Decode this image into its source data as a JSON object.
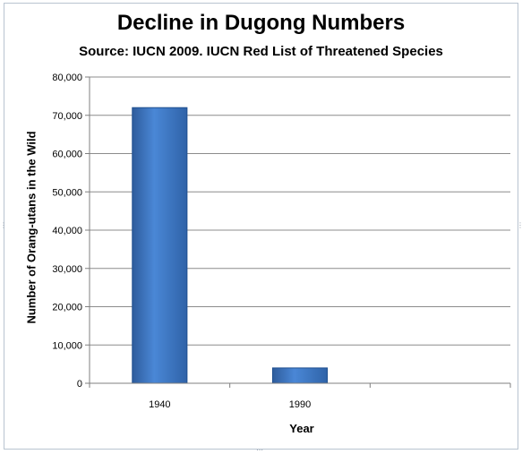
{
  "chart_data": {
    "type": "bar",
    "title": "Decline in Dugong Numbers",
    "subtitle": "Source:  IUCN 2009. IUCN Red List of Threatened Species",
    "xlabel": "Year",
    "ylabel": "Number of Orang-utans in the Wild",
    "categories": [
      "1940",
      "1990",
      ""
    ],
    "values": [
      72000,
      4000,
      null
    ],
    "ylim": [
      0,
      80000
    ],
    "yticks": [
      0,
      10000,
      20000,
      30000,
      40000,
      50000,
      60000,
      70000,
      80000
    ],
    "ytick_labels": [
      "0",
      "10,000",
      "20,000",
      "30,000",
      "40,000",
      "50,000",
      "60,000",
      "70,000",
      "80,000"
    ],
    "grid": true,
    "legend": "none",
    "bar_color": "#3f79c7",
    "grid_color": "#8c8c8c"
  }
}
